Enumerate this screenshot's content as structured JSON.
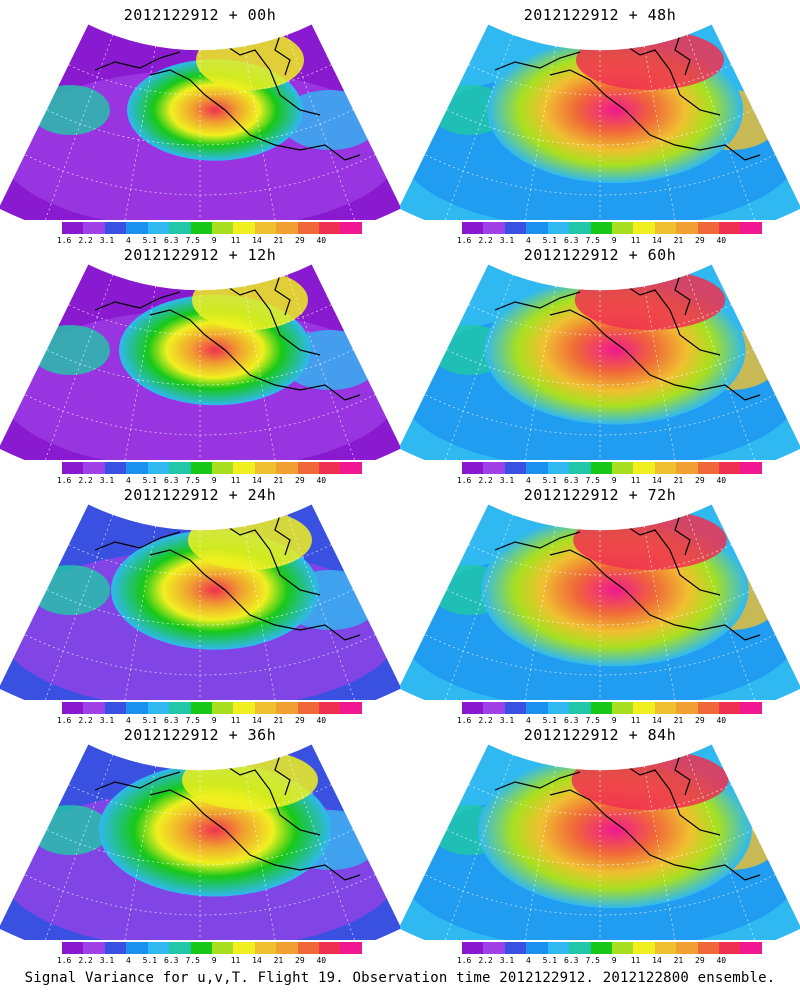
{
  "panels": [
    {
      "title": "2012122912 + 00h",
      "lead": "00h"
    },
    {
      "title": "2012122912 + 48h",
      "lead": "48h"
    },
    {
      "title": "2012122912 + 12h",
      "lead": "12h"
    },
    {
      "title": "2012122912 + 60h",
      "lead": "60h"
    },
    {
      "title": "2012122912 + 24h",
      "lead": "24h"
    },
    {
      "title": "2012122912 + 72h",
      "lead": "72h"
    },
    {
      "title": "2012122912 + 36h",
      "lead": "36h"
    },
    {
      "title": "2012122912 + 84h",
      "lead": "84h"
    }
  ],
  "colorbar": {
    "ticks": [
      "1.6",
      "2.2",
      "3.1",
      "4",
      "5.1",
      "6.3",
      "7.5",
      "9",
      "11",
      "14",
      "21",
      "29",
      "40"
    ],
    "colors": [
      "#8a1ad0",
      "#a040e8",
      "#3a50e0",
      "#1a90f0",
      "#30b8f0",
      "#20c8a8",
      "#18c818",
      "#a8e020",
      "#f0f020",
      "#f0c030",
      "#f0a030",
      "#f06838",
      "#f03050",
      "#f01890"
    ]
  },
  "footer": "Signal Variance for u,v,T. Flight 19. Observation time 2012122912. 2012122800 ensemble."
}
